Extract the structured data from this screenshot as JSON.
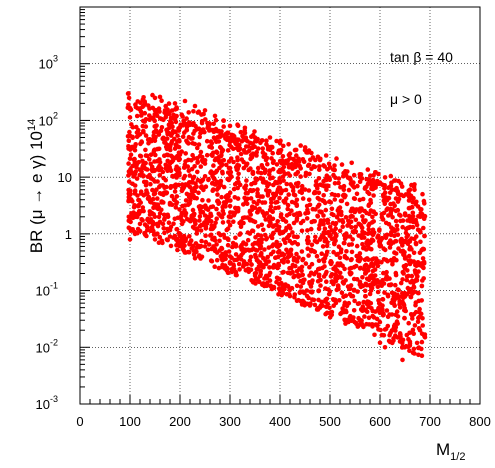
{
  "chart_data": {
    "type": "scatter",
    "title": "",
    "xlabel_main": "M",
    "xlabel_sub": "1/2",
    "ylabel_main": "BR (μ → e γ) 10",
    "ylabel_sup": "14",
    "xlim": [
      0,
      800
    ],
    "ylim": [
      0.001,
      10000
    ],
    "y_scale": "log",
    "grid": true,
    "x_ticks": [
      "0",
      "100",
      "200",
      "300",
      "400",
      "500",
      "600",
      "700",
      "800"
    ],
    "x_tick_values": [
      0,
      100,
      200,
      300,
      400,
      500,
      600,
      700,
      800
    ],
    "y_ticks": [
      {
        "value": 0.001,
        "base": "10",
        "sup": "-3"
      },
      {
        "value": 0.01,
        "base": "10",
        "sup": "-2"
      },
      {
        "value": 0.1,
        "base": "10",
        "sup": "-1"
      },
      {
        "value": 1,
        "base": "1",
        "sup": ""
      },
      {
        "value": 10,
        "base": "10",
        "sup": ""
      },
      {
        "value": 100,
        "base": "10",
        "sup": "2"
      },
      {
        "value": 1000,
        "base": "10",
        "sup": "3"
      }
    ],
    "annotations": [
      "tan β = 40",
      "μ > 0"
    ],
    "marker_color": "#ff0000",
    "series": [
      {
        "x_range": [
          95,
          690
        ],
        "description_points": [
          [
            130,
            200
          ],
          [
            145,
            280
          ],
          [
            150,
            250
          ],
          [
            160,
            260
          ],
          [
            170,
            150
          ],
          [
            190,
            200
          ],
          [
            210,
            220
          ],
          [
            230,
            180
          ],
          [
            250,
            150
          ],
          [
            270,
            120
          ],
          [
            300,
            80
          ],
          [
            330,
            60
          ],
          [
            350,
            50
          ],
          [
            380,
            50
          ],
          [
            400,
            40
          ],
          [
            430,
            30
          ],
          [
            450,
            30
          ],
          [
            480,
            20
          ],
          [
            500,
            15
          ],
          [
            530,
            12
          ],
          [
            560,
            10
          ],
          [
            600,
            8
          ],
          [
            630,
            6
          ],
          [
            660,
            6
          ],
          [
            685,
            5
          ],
          [
            100,
            0.8
          ],
          [
            110,
            1
          ],
          [
            120,
            1.5
          ],
          [
            150,
            0.8
          ],
          [
            180,
            0.9
          ],
          [
            200,
            1
          ],
          [
            220,
            0.7
          ],
          [
            250,
            0.6
          ],
          [
            270,
            0.5
          ],
          [
            300,
            0.4
          ],
          [
            330,
            0.3
          ],
          [
            350,
            0.2
          ],
          [
            380,
            0.15
          ],
          [
            400,
            0.1
          ],
          [
            420,
            0.08
          ],
          [
            450,
            0.06
          ],
          [
            480,
            0.05
          ],
          [
            500,
            0.04
          ],
          [
            530,
            0.03
          ],
          [
            560,
            0.03
          ],
          [
            600,
            0.012
          ],
          [
            610,
            0.01
          ],
          [
            640,
            0.015
          ],
          [
            645,
            0.006
          ],
          [
            680,
            0.02
          ],
          [
            690,
            0.015
          ]
        ]
      }
    ]
  }
}
